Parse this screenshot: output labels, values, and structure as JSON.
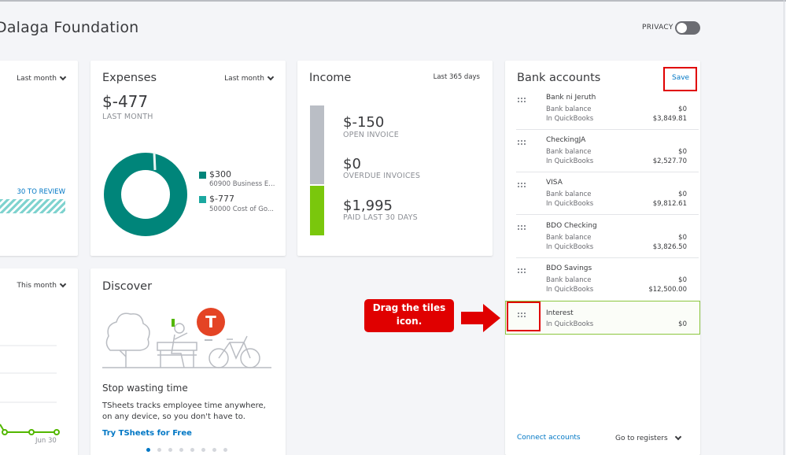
{
  "header": {
    "company": "Dalaga Foundation",
    "privacy_label": "PRIVACY"
  },
  "left_card_top": {
    "period": "Last month",
    "review_link": "30 TO REVIEW"
  },
  "left_card_bottom": {
    "period": "This month",
    "axis_label": "Jun 30"
  },
  "expenses": {
    "title": "Expenses",
    "period": "Last month",
    "amount": "$-477",
    "amount_label": "LAST MONTH",
    "legend": [
      {
        "value": "$300",
        "label": "60900 Business E...",
        "color": "#00857a"
      },
      {
        "value": "$-777",
        "label": "50000 Cost of Go...",
        "color": "#1ba8a0"
      }
    ]
  },
  "income": {
    "title": "Income",
    "period": "Last 365 days",
    "rows": [
      {
        "amount": "$-150",
        "label": "OPEN INVOICE"
      },
      {
        "amount": "$0",
        "label": "OVERDUE INVOICES"
      },
      {
        "amount": "$1,995",
        "label": "PAID LAST 30 DAYS"
      }
    ],
    "colors": {
      "open": "#babec5",
      "paid": "#7ac70c"
    }
  },
  "bank": {
    "title": "Bank accounts",
    "save_label": "Save",
    "bank_balance_label": "Bank balance",
    "in_qb_label": "In QuickBooks",
    "accounts": [
      {
        "name": "Bank ni Jeruth",
        "bank_balance": "$0",
        "qb_balance": "$3,849.81"
      },
      {
        "name": "CheckingJA",
        "bank_balance": "$0",
        "qb_balance": "$2,527.70"
      },
      {
        "name": "VISA",
        "bank_balance": "$0",
        "qb_balance": "$9,812.61"
      },
      {
        "name": "BDO Checking",
        "bank_balance": "$0",
        "qb_balance": "$3,826.50"
      },
      {
        "name": "BDO Savings",
        "bank_balance": "$0",
        "qb_balance": "$12,500.00"
      }
    ],
    "interest": {
      "name": "Interest",
      "qb_balance": "$0"
    },
    "connect_label": "Connect accounts",
    "registers_label": "Go to registers"
  },
  "discover": {
    "title": "Discover",
    "heading": "Stop wasting time",
    "body": "TSheets tracks employee time anywhere, on any device, so you don't have to.",
    "link": "Try TSheets for Free",
    "logo_letter": "T"
  },
  "callout": {
    "line1": "Drag the tiles",
    "line2": "icon."
  }
}
